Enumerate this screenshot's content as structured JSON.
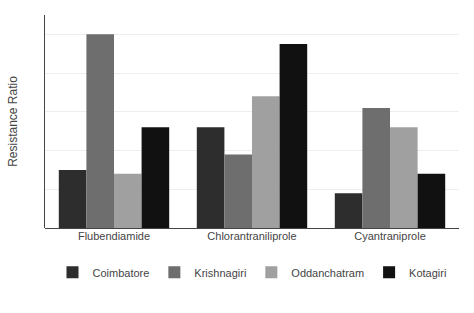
{
  "chart_data": {
    "type": "bar",
    "categories": [
      "Flubendiamide",
      "Chlorantraniliprole",
      "Cyantraniprole"
    ],
    "series": [
      {
        "name": "Coimbatore",
        "color": "#2d2d2d",
        "values": [
          30,
          52,
          18
        ]
      },
      {
        "name": "Krishnagiri",
        "color": "#6e6e6e",
        "values": [
          100,
          38,
          62
        ]
      },
      {
        "name": "Oddanchatram",
        "color": "#a0a0a0",
        "values": [
          28,
          68,
          52
        ]
      },
      {
        "name": "Kotagiri",
        "color": "#111111",
        "values": [
          52,
          95,
          28
        ]
      }
    ],
    "ylabel": "Resistance Ratio",
    "ylim": [
      0,
      110
    ],
    "yticks": [
      0,
      20,
      40,
      60,
      80,
      100
    ],
    "grid": true,
    "legend": "bottom",
    "tick_labels": "x"
  }
}
